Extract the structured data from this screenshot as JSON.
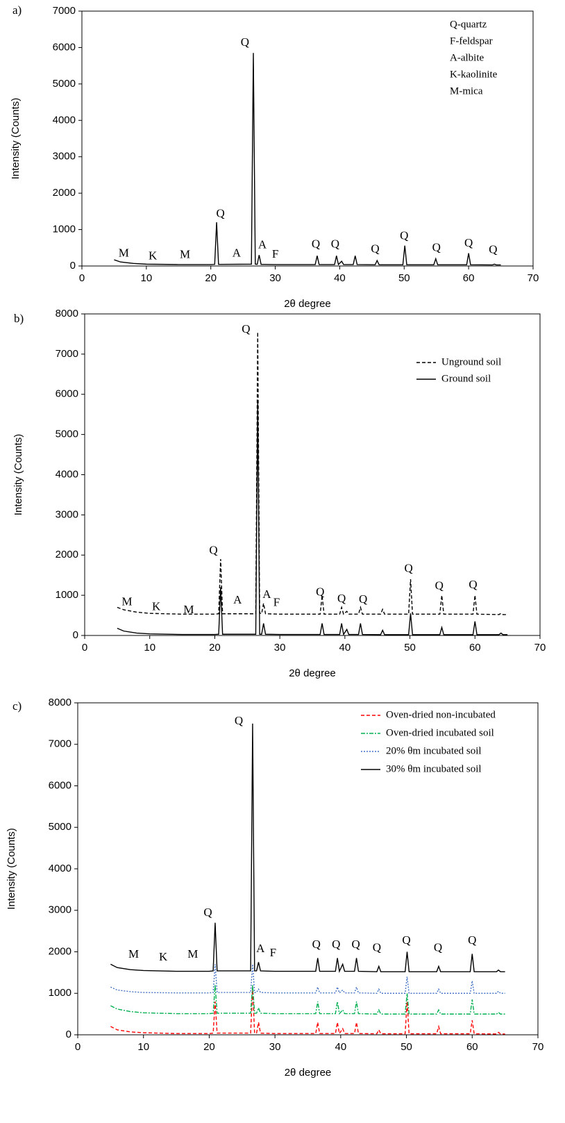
{
  "chart_data": [
    {
      "type": "line",
      "label": "a)",
      "xlabel": "2θ degree",
      "ylabel": "Intensity (Counts)",
      "xlim": [
        0,
        70
      ],
      "xticks": [
        0,
        10,
        20,
        30,
        40,
        50,
        60,
        70
      ],
      "ylim": [
        0,
        7000
      ],
      "yticks": [
        0,
        1000,
        2000,
        3000,
        4000,
        5000,
        6000,
        7000
      ],
      "x": [
        5,
        6,
        8,
        10,
        15,
        20,
        20.6,
        20.9,
        21.2,
        26.3,
        26.6,
        26.9,
        27.2,
        27.5,
        27.8,
        30,
        36.2,
        36.5,
        36.8,
        39.2,
        39.5,
        39.8,
        40.3,
        40.6,
        42.1,
        42.4,
        42.7,
        45.5,
        45.8,
        46.1,
        49.8,
        50.1,
        50.4,
        54.6,
        54.9,
        55.2,
        59.7,
        60,
        60.3,
        63.7,
        64,
        64.3,
        65
      ],
      "series": [
        {
          "color": "#000000",
          "line_style": "solid",
          "values": [
            170,
            110,
            70,
            50,
            40,
            40,
            45,
            1200,
            45,
            50,
            5850,
            50,
            45,
            300,
            45,
            40,
            40,
            280,
            40,
            40,
            280,
            40,
            130,
            40,
            40,
            280,
            40,
            35,
            150,
            35,
            35,
            560,
            35,
            35,
            200,
            35,
            35,
            350,
            35,
            30,
            50,
            30,
            30
          ]
        }
      ],
      "legend_text": [
        "Q-quartz",
        "F-feldspar",
        "A-albite",
        "K-kaolinite",
        "M-mica"
      ],
      "annotations": [
        {
          "text": "M",
          "x": 6.5,
          "y": 330
        },
        {
          "text": "K",
          "x": 11,
          "y": 260
        },
        {
          "text": "M",
          "x": 16,
          "y": 290
        },
        {
          "text": "Q",
          "x": 21.5,
          "y": 1420
        },
        {
          "text": "A",
          "x": 24,
          "y": 330
        },
        {
          "text": "Q",
          "x": 25.3,
          "y": 6120
        },
        {
          "text": "A",
          "x": 28,
          "y": 560
        },
        {
          "text": "F",
          "x": 30,
          "y": 300
        },
        {
          "text": "Q",
          "x": 36.3,
          "y": 580
        },
        {
          "text": "Q",
          "x": 39.3,
          "y": 580
        },
        {
          "text": "Q",
          "x": 45.5,
          "y": 450
        },
        {
          "text": "Q",
          "x": 50,
          "y": 810
        },
        {
          "text": "Q",
          "x": 55,
          "y": 480
        },
        {
          "text": "Q",
          "x": 60,
          "y": 610
        },
        {
          "text": "Q",
          "x": 63.8,
          "y": 430
        }
      ]
    },
    {
      "type": "line",
      "label": "b)",
      "xlabel": "2θ degree",
      "ylabel": "Intensity (Counts)",
      "xlim": [
        0,
        70
      ],
      "xticks": [
        0,
        10,
        20,
        30,
        40,
        50,
        60,
        70
      ],
      "ylim": [
        0,
        8000
      ],
      "yticks": [
        0,
        1000,
        2000,
        3000,
        4000,
        5000,
        6000,
        7000,
        8000
      ],
      "x": [
        5,
        6,
        8,
        10,
        15,
        20,
        20.6,
        20.9,
        21.2,
        26.3,
        26.6,
        26.9,
        27.2,
        27.5,
        27.8,
        30,
        36.2,
        36.5,
        36.8,
        39.2,
        39.5,
        39.8,
        40.3,
        40.6,
        42.1,
        42.4,
        42.7,
        45.5,
        45.8,
        46.1,
        49.8,
        50.1,
        50.4,
        54.6,
        54.9,
        55.2,
        59.7,
        60,
        60.3,
        63.7,
        64,
        64.3,
        65
      ],
      "legend": "upper right",
      "series": [
        {
          "name": "Unground soil",
          "color": "#000000",
          "line_style": "dashed",
          "values": [
            700,
            640,
            580,
            550,
            530,
            530,
            540,
            1900,
            540,
            540,
            7550,
            560,
            540,
            800,
            540,
            530,
            530,
            1000,
            530,
            530,
            700,
            530,
            600,
            530,
            530,
            700,
            530,
            530,
            650,
            530,
            530,
            1400,
            530,
            530,
            1000,
            530,
            530,
            1000,
            530,
            520,
            550,
            520,
            520
          ]
        },
        {
          "name": "Ground  soil",
          "color": "#000000",
          "line_style": "solid",
          "values": [
            180,
            110,
            60,
            40,
            25,
            25,
            30,
            1200,
            30,
            30,
            5800,
            30,
            30,
            300,
            30,
            25,
            25,
            300,
            25,
            25,
            300,
            25,
            150,
            25,
            25,
            300,
            25,
            20,
            130,
            20,
            20,
            550,
            20,
            20,
            200,
            20,
            20,
            350,
            20,
            20,
            60,
            20,
            20
          ]
        }
      ],
      "annotations": [
        {
          "text": "M",
          "x": 6.5,
          "y": 820
        },
        {
          "text": "K",
          "x": 11,
          "y": 700
        },
        {
          "text": "M",
          "x": 16,
          "y": 620
        },
        {
          "text": "Q",
          "x": 19.8,
          "y": 2100
        },
        {
          "text": "A",
          "x": 23.5,
          "y": 860
        },
        {
          "text": "Q",
          "x": 24.8,
          "y": 7600
        },
        {
          "text": "A",
          "x": 28,
          "y": 1000
        },
        {
          "text": "F",
          "x": 29.5,
          "y": 800
        },
        {
          "text": "Q",
          "x": 36.2,
          "y": 1060
        },
        {
          "text": "Q",
          "x": 39.5,
          "y": 900
        },
        {
          "text": "Q",
          "x": 42.8,
          "y": 880
        },
        {
          "text": "Q",
          "x": 49.8,
          "y": 1650
        },
        {
          "text": "Q",
          "x": 54.5,
          "y": 1220
        },
        {
          "text": "Q",
          "x": 59.7,
          "y": 1240
        }
      ]
    },
    {
      "type": "line",
      "label": "c)",
      "xlabel": "2θ degree",
      "ylabel": "Intensity (Counts)",
      "xlim": [
        0,
        70
      ],
      "xticks": [
        0,
        10,
        20,
        30,
        40,
        50,
        60,
        70
      ],
      "ylim": [
        0,
        8000
      ],
      "yticks": [
        0,
        1000,
        2000,
        3000,
        4000,
        5000,
        6000,
        7000,
        8000
      ],
      "x": [
        5,
        6,
        8,
        10,
        15,
        20,
        20.6,
        20.9,
        21.2,
        26.3,
        26.6,
        26.9,
        27.2,
        27.5,
        27.8,
        30,
        36.2,
        36.5,
        36.8,
        39.2,
        39.5,
        39.8,
        40.3,
        40.6,
        42.1,
        42.4,
        42.7,
        45.5,
        45.8,
        46.1,
        49.8,
        50.1,
        50.4,
        54.6,
        54.9,
        55.2,
        59.7,
        60,
        60.3,
        63.7,
        64,
        64.3,
        65
      ],
      "legend": "upper right",
      "series": [
        {
          "name": "Oven-dried non-incubated",
          "color": "#ff0000",
          "line_style": "dashed",
          "values": [
            200,
            120,
            70,
            50,
            30,
            30,
            40,
            800,
            40,
            40,
            1150,
            40,
            40,
            300,
            40,
            30,
            30,
            300,
            30,
            30,
            300,
            30,
            150,
            30,
            30,
            300,
            30,
            25,
            120,
            25,
            25,
            800,
            25,
            25,
            200,
            25,
            25,
            350,
            25,
            20,
            60,
            20,
            20
          ]
        },
        {
          "name": "Oven-dried incubated soil",
          "color": "#00b050",
          "line_style": "dashdot",
          "values": [
            700,
            620,
            560,
            530,
            510,
            510,
            520,
            1200,
            520,
            520,
            1200,
            520,
            520,
            650,
            520,
            510,
            510,
            800,
            510,
            510,
            800,
            510,
            600,
            510,
            510,
            800,
            510,
            500,
            600,
            500,
            500,
            1000,
            500,
            500,
            600,
            500,
            500,
            850,
            500,
            500,
            540,
            500,
            500
          ]
        },
        {
          "name": "20% θm incubated soil",
          "color": "#4472c4",
          "line_style": "dotted",
          "values": [
            1150,
            1080,
            1040,
            1020,
            1010,
            1010,
            1020,
            1700,
            1020,
            1020,
            1700,
            1020,
            1020,
            1100,
            1020,
            1010,
            1010,
            1150,
            1010,
            1010,
            1150,
            1010,
            1080,
            1010,
            1010,
            1150,
            1010,
            1000,
            1100,
            1000,
            1000,
            1400,
            1000,
            1000,
            1100,
            1000,
            1000,
            1300,
            1000,
            1000,
            1050,
            1000,
            1000
          ]
        },
        {
          "name": "30% θm incubated soil",
          "color": "#000000",
          "line_style": "solid",
          "values": [
            1700,
            1620,
            1570,
            1550,
            1530,
            1530,
            1540,
            2700,
            1540,
            1540,
            7500,
            1540,
            1540,
            1750,
            1540,
            1530,
            1530,
            1850,
            1530,
            1530,
            1850,
            1530,
            1700,
            1530,
            1530,
            1850,
            1530,
            1520,
            1650,
            1520,
            1520,
            2000,
            1520,
            1520,
            1650,
            1520,
            1520,
            1950,
            1520,
            1520,
            1560,
            1520,
            1520
          ]
        }
      ],
      "annotations": [
        {
          "text": "M",
          "x": 8.5,
          "y": 1920
        },
        {
          "text": "K",
          "x": 13,
          "y": 1860
        },
        {
          "text": "M",
          "x": 17.5,
          "y": 1920
        },
        {
          "text": "Q",
          "x": 19.8,
          "y": 2930
        },
        {
          "text": "Q",
          "x": 24.5,
          "y": 7550
        },
        {
          "text": "A",
          "x": 27.8,
          "y": 2060
        },
        {
          "text": "F",
          "x": 29.7,
          "y": 1960
        },
        {
          "text": "Q",
          "x": 36.3,
          "y": 2160
        },
        {
          "text": "Q",
          "x": 39.3,
          "y": 2160
        },
        {
          "text": "Q",
          "x": 42.3,
          "y": 2160
        },
        {
          "text": "Q",
          "x": 45.5,
          "y": 2080
        },
        {
          "text": "Q",
          "x": 50,
          "y": 2260
        },
        {
          "text": "Q",
          "x": 54.8,
          "y": 2080
        },
        {
          "text": "Q",
          "x": 60,
          "y": 2260
        }
      ]
    }
  ]
}
